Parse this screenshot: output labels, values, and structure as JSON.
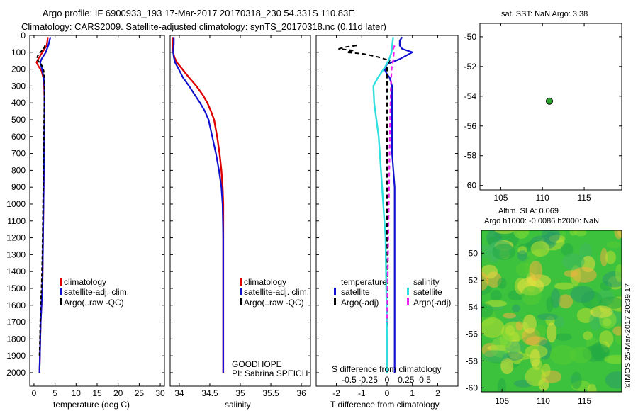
{
  "header": {
    "line1": "Argo profile: IF 6900933_193 17-Mar-2017 20170318_230 54.331S 110.83E",
    "line2": "Climatology: CARS2009. Satellite-adjusted climatology: synTS_20170318.nc (0.11d later)"
  },
  "colors": {
    "climatology": "#e00000",
    "satellite": "#1010d0",
    "argo": "#000000",
    "sat_salinity": "#30e0e0",
    "argo_adj_salinity": "#f020f0"
  },
  "depth_ticks": [
    "0",
    "100",
    "200",
    "300",
    "400",
    "500",
    "600",
    "700",
    "800",
    "900",
    "1000",
    "1100",
    "1200",
    "1300",
    "1400",
    "1500",
    "1600",
    "1700",
    "1800",
    "1900",
    "2000"
  ],
  "chart_data": [
    {
      "type": "line",
      "xlabel": "temperature (deg C)",
      "ylabel": "",
      "xlim": [
        -1,
        31
      ],
      "ylim": [
        2080,
        0
      ],
      "x_ticks": [
        "0",
        "5",
        "10",
        "15",
        "20",
        "25",
        "30"
      ],
      "legend": [
        "climatology",
        "satellite-adj. clim.",
        "Argo(..raw -QC)"
      ],
      "series": [
        {
          "name": "climatology",
          "x": [
            3.3,
            3.2,
            3.0,
            2.0,
            1.0,
            0.6,
            1.0,
            1.8,
            2.2,
            2.4,
            2.5,
            2.5,
            2.4,
            2.3,
            2.2,
            2.1,
            2.0,
            1.8,
            1.6,
            1.5,
            1.4,
            1.3
          ],
          "y": [
            10,
            30,
            60,
            100,
            140,
            160,
            180,
            210,
            250,
            300,
            400,
            500,
            700,
            900,
            1100,
            1300,
            1500,
            1600,
            1700,
            1800,
            1900,
            2000
          ]
        },
        {
          "name": "satellite-adj. clim.",
          "x": [
            3.9,
            3.7,
            3.4,
            2.8,
            1.8,
            1.5,
            1.7,
            2.0,
            2.3,
            2.5,
            2.5,
            2.5,
            2.4,
            2.3,
            2.2,
            2.1,
            2.0,
            1.8,
            1.6,
            1.5,
            1.4,
            1.3
          ],
          "y": [
            10,
            30,
            60,
            100,
            140,
            160,
            180,
            210,
            250,
            300,
            400,
            500,
            700,
            900,
            1100,
            1300,
            1500,
            1600,
            1700,
            1800,
            1900,
            2000
          ]
        },
        {
          "name": "Argo(..raw -QC)",
          "x": [
            2.6,
            2.3,
            1.5,
            0.9,
            0.6,
            1.3,
            1.9,
            2.3,
            2.5,
            2.5,
            2.4,
            2.3,
            2.2,
            2.1,
            2.0,
            1.8,
            1.6,
            1.5,
            1.4,
            1.3
          ],
          "y": [
            60,
            80,
            100,
            120,
            140,
            160,
            180,
            210,
            250,
            300,
            500,
            700,
            900,
            1100,
            1300,
            1500,
            1600,
            1700,
            1800,
            1900
          ]
        }
      ]
    },
    {
      "type": "line",
      "xlabel": "salinity",
      "ylabel": "",
      "xlim": [
        33.85,
        36.15
      ],
      "ylim": [
        2080,
        0
      ],
      "x_ticks": [
        "34",
        "34.5",
        "35",
        "35.5",
        "36"
      ],
      "legend": [
        "climatology",
        "satellite-adj. clim.",
        "Argo(..raw -QC)"
      ],
      "annotations": [
        "GOODHOPE",
        "PI: Sabrina SPEICH"
      ],
      "series": [
        {
          "name": "climatology",
          "x": [
            33.89,
            33.89,
            33.9,
            33.92,
            33.96,
            34.05,
            34.16,
            34.28,
            34.38,
            34.46,
            34.52,
            34.57,
            34.62,
            34.66,
            34.69,
            34.71,
            34.72,
            34.72,
            34.72,
            34.72,
            34.72
          ],
          "y": [
            10,
            50,
            100,
            130,
            160,
            200,
            250,
            300,
            350,
            400,
            450,
            500,
            600,
            700,
            800,
            900,
            1000,
            1200,
            1500,
            1800,
            2000
          ]
        },
        {
          "name": "satellite-adj. clim.",
          "x": [
            33.91,
            33.91,
            33.9,
            33.91,
            33.93,
            33.99,
            34.06,
            34.16,
            34.25,
            34.34,
            34.42,
            34.48,
            34.54,
            34.6,
            34.65,
            34.69,
            34.71,
            34.72,
            34.72,
            34.72,
            34.72
          ],
          "y": [
            10,
            50,
            100,
            130,
            160,
            200,
            250,
            300,
            350,
            400,
            450,
            500,
            600,
            700,
            800,
            900,
            1000,
            1200,
            1500,
            1800,
            2000
          ]
        }
      ]
    },
    {
      "type": "line",
      "xlabel": "T difference from climatology",
      "x2label": "S difference from climatology",
      "ylabel": "",
      "xlim": [
        -2.8,
        2.8
      ],
      "ylim": [
        2080,
        0
      ],
      "x_ticks": [
        "-2",
        "-1",
        "0",
        "1",
        "2"
      ],
      "x2_ticks": [
        "-0.5",
        "-0.25",
        "0",
        "0.25",
        "0.5"
      ],
      "legend_titles": [
        "temperature",
        "salinity"
      ],
      "legend": [
        "satellite",
        "Argo(-adj)",
        "satellite",
        "Argo(-adj)"
      ],
      "series": [
        {
          "name": "temperature satellite",
          "x": [
            0.6,
            0.5,
            0.5,
            0.6,
            1.0,
            0.5,
            0.0,
            -0.1,
            0.0,
            0.1,
            0.2,
            0.2,
            0.2,
            0.3,
            0.3,
            0.3,
            0.3,
            0.3
          ],
          "y": [
            10,
            30,
            60,
            80,
            100,
            140,
            170,
            200,
            230,
            250,
            300,
            500,
            700,
            900,
            1100,
            1500,
            1800,
            2000
          ]
        },
        {
          "name": "temperature Argo(-adj)",
          "x": [
            -1.2,
            -1.7,
            -1.9,
            -1.3,
            -1.6,
            -0.9,
            -0.3,
            0.1,
            0.0,
            0.0,
            0.0,
            0.0,
            0.0,
            0.0,
            0.0,
            0.0
          ],
          "y": [
            60,
            70,
            80,
            90,
            100,
            110,
            130,
            150,
            180,
            220,
            300,
            500,
            800,
            1200,
            1600,
            1900
          ]
        },
        {
          "name": "salinity satellite",
          "x": [
            0.08,
            0.07,
            0.06,
            0.02,
            -0.03,
            -0.12,
            -0.18,
            -0.17,
            -0.14,
            -0.11,
            -0.08,
            -0.05,
            -0.02,
            -0.01,
            0.0,
            0.0
          ],
          "y": [
            10,
            50,
            100,
            150,
            190,
            250,
            300,
            400,
            500,
            600,
            800,
            1000,
            1200,
            1500,
            1800,
            2000
          ]
        },
        {
          "name": "salinity Argo(-adj)",
          "x": [
            0.1,
            0.08,
            0.09,
            0.08,
            0.06,
            0.05,
            0.04,
            0.03,
            0.02,
            0.01,
            0.0
          ],
          "y": [
            60,
            80,
            100,
            150,
            200,
            300,
            500,
            800,
            1100,
            1400,
            1700
          ]
        }
      ]
    },
    {
      "type": "scatter",
      "title": "sat. SST: NaN Argo: 3.38",
      "xlim": [
        102.5,
        119.5
      ],
      "ylim": [
        -60.3,
        -49.1
      ],
      "x_ticks": [
        "105",
        "110",
        "115"
      ],
      "y_ticks": [
        "-50",
        "-52",
        "-54",
        "-56",
        "-58",
        "-60"
      ],
      "points": [
        {
          "x": 110.83,
          "y": -54.331
        }
      ]
    },
    {
      "type": "heatmap",
      "title": "Altim. SLA: 0.069",
      "subtitle": "Argo h1000: -0.0086 h2000: NaN",
      "xlim": [
        102.5,
        119.5
      ],
      "ylim": [
        -60.3,
        -48.3
      ],
      "x_ticks": [
        "105",
        "110",
        "115"
      ],
      "y_ticks": [
        "-50",
        "-52",
        "-54",
        "-56",
        "-58",
        "-60"
      ],
      "watermark": "©IMOS 25-Mar-2017 20:39:17"
    }
  ]
}
